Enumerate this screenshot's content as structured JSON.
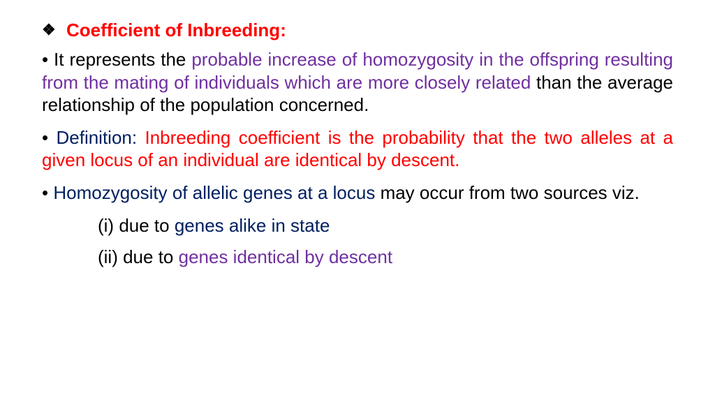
{
  "colors": {
    "red": "#ff0000",
    "purple": "#7030a0",
    "navy": "#002060",
    "black": "#000000",
    "background": "#ffffff"
  },
  "typography": {
    "font_family": "Comic Sans MS",
    "title_fontsize_pt": 20,
    "body_fontsize_pt": 20,
    "title_fontweight": "bold"
  },
  "title": {
    "bullet": "❖",
    "text": "Coefficient of Inbreeding:"
  },
  "bullets": [
    {
      "lead_dot": "•",
      "pre_black": " It represents the ",
      "purple": "probable increase of homozygosity in the offspring resulting from the mating of individuals which are more closely related",
      "post_black": " than the average relationship of the population concerned."
    },
    {
      "lead_dot": "•",
      "def_label": " Definition:",
      "red_text": " Inbreeding coefficient is the probability that the two alleles at a given locus of an individual are identical by descent."
    },
    {
      "lead_dot": "•",
      "navy_text": " Homozygosity of allelic genes at a locus ",
      "post_black": "may occur from two sources viz."
    }
  ],
  "subitems": [
    {
      "black": "(i) due to ",
      "navy": "genes alike in state"
    },
    {
      "black": "(ii) due to ",
      "purple": "genes identical by descent"
    }
  ]
}
